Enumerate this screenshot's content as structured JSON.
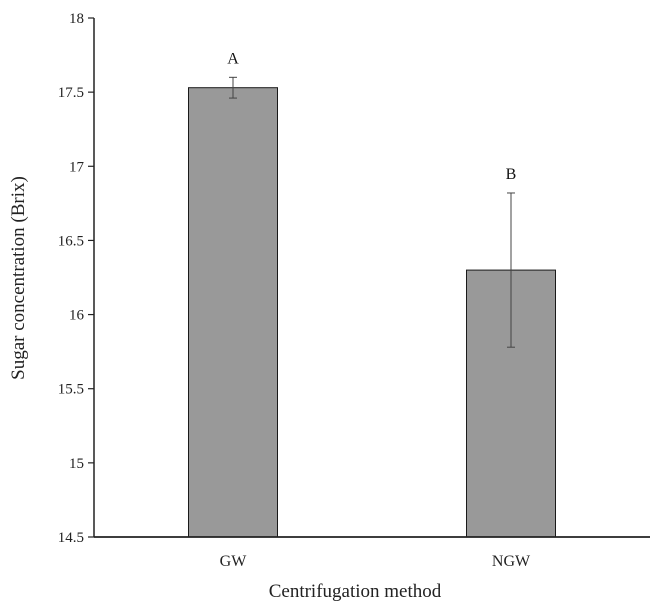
{
  "chart_data": {
    "type": "bar",
    "title": "",
    "xlabel": "Centrifugation method",
    "ylabel": "Sugar concentration (Brix)",
    "ylim": [
      14.5,
      18
    ],
    "yticks": [
      14.5,
      15,
      15.5,
      16,
      16.5,
      17,
      17.5,
      18
    ],
    "ytick_labels": [
      "14.5",
      "15",
      "15.5",
      "16",
      "16.5",
      "17",
      "17.5",
      "18"
    ],
    "grid": false,
    "legend": "none",
    "categories": [
      "GW",
      "NGW"
    ],
    "values": [
      17.53,
      16.3
    ],
    "error": [
      0.07,
      0.52
    ],
    "significance_labels": [
      "A",
      "B"
    ],
    "bar_color": "#999999",
    "bar_edge_color": "#1a1a1a"
  }
}
